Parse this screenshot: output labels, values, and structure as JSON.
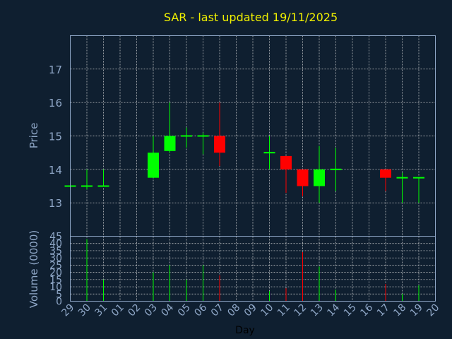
{
  "chart_data": {
    "type": "candlestick",
    "title": "SAR - last updated 19/11/2025",
    "xlabel": "Day",
    "x_ticks": [
      "29",
      "30",
      "31",
      "01",
      "02",
      "03",
      "04",
      "05",
      "06",
      "07",
      "08",
      "09",
      "10",
      "11",
      "12",
      "13",
      "14",
      "15",
      "16",
      "17",
      "18",
      "19",
      "20"
    ],
    "grid": true,
    "colors": {
      "background": "#0f1f30",
      "plot_background": "#0f1f30",
      "frame": "#8fa7c7",
      "grid": "#d8d8d8",
      "title": "#f0f000",
      "up": "#00ff00",
      "down": "#ff0000",
      "neutral": "#00ff00"
    },
    "price": {
      "ylabel": "Price",
      "ylim": [
        12,
        18
      ],
      "y_ticks": [
        13,
        14,
        15,
        16,
        17
      ],
      "candles": [
        {
          "day": "29",
          "open": 13.5,
          "high": 13.5,
          "low": 13.5,
          "close": 13.5
        },
        {
          "day": "30",
          "open": 13.5,
          "high": 14.0,
          "low": 13.4,
          "close": 13.5
        },
        {
          "day": "31",
          "open": 13.5,
          "high": 14.0,
          "low": 13.5,
          "close": 13.5
        },
        {
          "day": "03",
          "open": 13.75,
          "high": 15.0,
          "low": 13.75,
          "close": 14.5
        },
        {
          "day": "04",
          "open": 14.55,
          "high": 16.0,
          "low": 14.5,
          "close": 15.0
        },
        {
          "day": "05",
          "open": 15.0,
          "high": 15.25,
          "low": 14.65,
          "close": 15.0
        },
        {
          "day": "06",
          "open": 15.0,
          "high": 15.1,
          "low": 14.45,
          "close": 15.0
        },
        {
          "day": "07",
          "open": 15.0,
          "high": 16.0,
          "low": 14.1,
          "close": 14.5
        },
        {
          "day": "10",
          "open": 14.5,
          "high": 15.0,
          "low": 14.0,
          "close": 14.5
        },
        {
          "day": "11",
          "open": 14.4,
          "high": 14.4,
          "low": 13.3,
          "close": 14.0
        },
        {
          "day": "12",
          "open": 14.0,
          "high": 14.0,
          "low": 13.2,
          "close": 13.5
        },
        {
          "day": "13",
          "open": 13.5,
          "high": 14.7,
          "low": 13.0,
          "close": 14.0
        },
        {
          "day": "14",
          "open": 14.0,
          "high": 14.65,
          "low": 13.35,
          "close": 14.0
        },
        {
          "day": "17",
          "open": 14.0,
          "high": 14.0,
          "low": 13.35,
          "close": 13.75
        },
        {
          "day": "18",
          "open": 13.75,
          "high": 13.9,
          "low": 13.0,
          "close": 13.75
        },
        {
          "day": "19",
          "open": 13.75,
          "high": 13.75,
          "low": 13.0,
          "close": 13.75
        }
      ]
    },
    "volume": {
      "ylabel": "Volume (0000)",
      "ylim": [
        0,
        45
      ],
      "y_ticks": [
        0,
        5,
        10,
        15,
        20,
        25,
        30,
        35,
        40,
        45
      ],
      "bars": [
        {
          "day": "30",
          "value": 43
        },
        {
          "day": "31",
          "value": 15
        },
        {
          "day": "03",
          "value": 20
        },
        {
          "day": "04",
          "value": 25
        },
        {
          "day": "05",
          "value": 15
        },
        {
          "day": "06",
          "value": 25
        },
        {
          "day": "07",
          "value": 18
        },
        {
          "day": "10",
          "value": 7
        },
        {
          "day": "11",
          "value": 9
        },
        {
          "day": "12",
          "value": 34
        },
        {
          "day": "13",
          "value": 24
        },
        {
          "day": "14",
          "value": 8
        },
        {
          "day": "17",
          "value": 12
        },
        {
          "day": "18",
          "value": 5
        },
        {
          "day": "19",
          "value": 11
        }
      ]
    }
  }
}
